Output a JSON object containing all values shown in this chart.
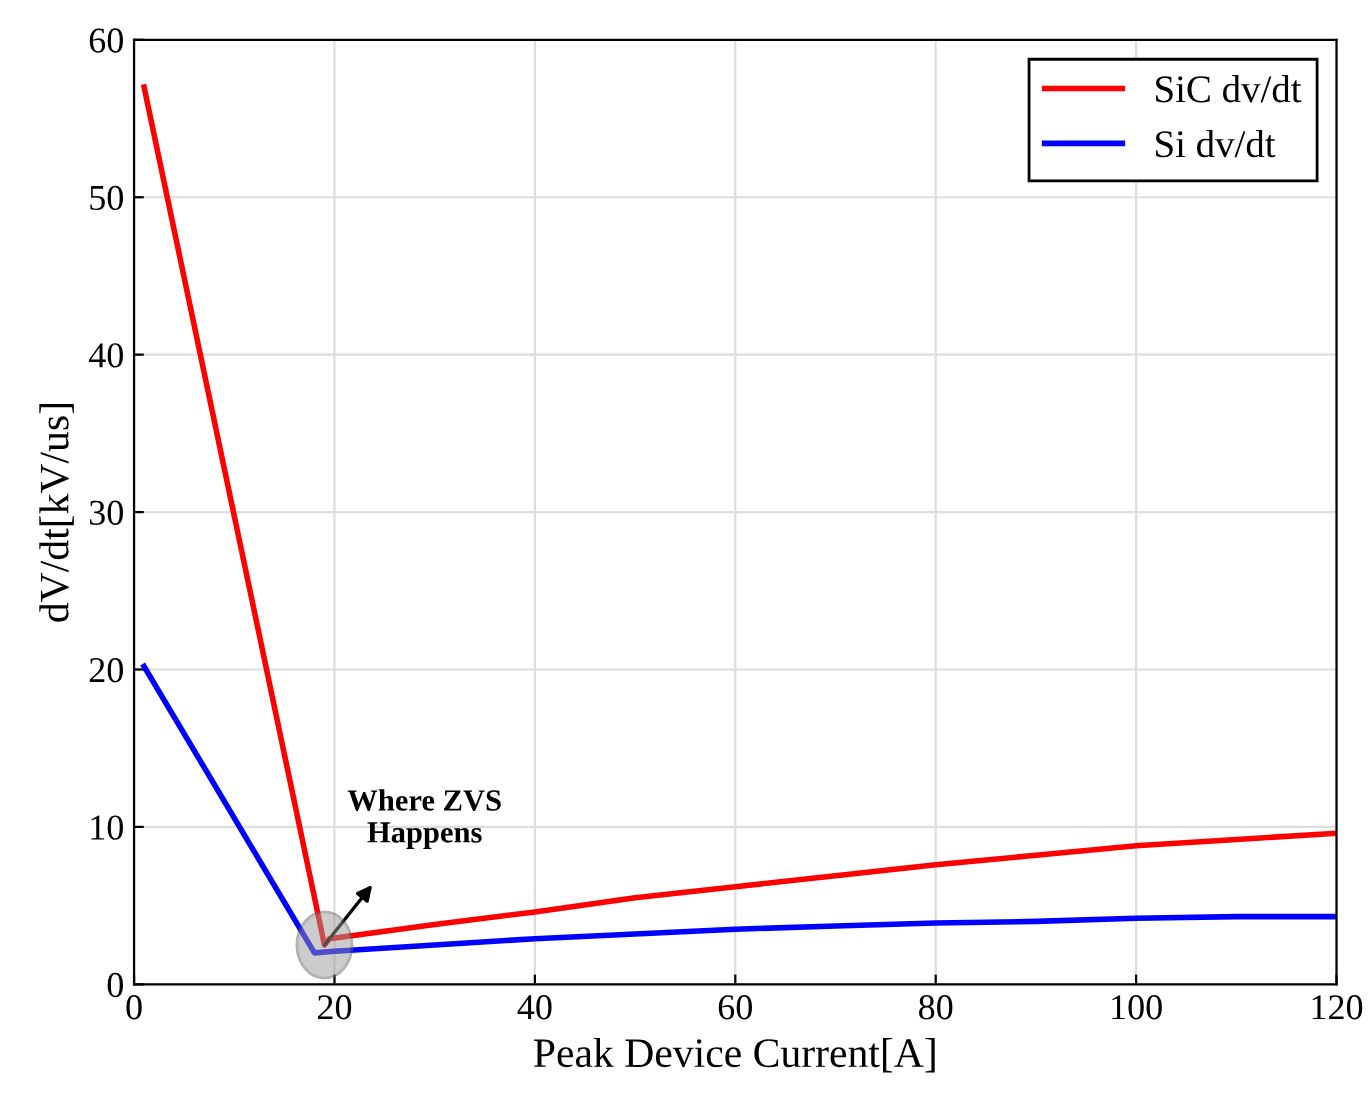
{
  "chart_data": {
    "type": "line",
    "xlabel": "Peak Device Current[A]",
    "ylabel": "dV/dt[kV/us]",
    "series": [
      {
        "name": "SiC dv/dt",
        "color": "#ff0000",
        "x": [
          1,
          19,
          19.5,
          30,
          40,
          50,
          60,
          70,
          80,
          90,
          100,
          110,
          120
        ],
        "values": [
          57,
          2.5,
          2.9,
          3.8,
          4.6,
          5.5,
          6.2,
          6.9,
          7.6,
          8.2,
          8.8,
          9.2,
          9.6
        ]
      },
      {
        "name": "Si dv/dt",
        "color": "#0000ff",
        "x": [
          1,
          18,
          20,
          30,
          40,
          50,
          60,
          70,
          80,
          90,
          100,
          110,
          120
        ],
        "values": [
          20.2,
          2.0,
          2.1,
          2.5,
          2.9,
          3.2,
          3.5,
          3.7,
          3.9,
          4.0,
          4.2,
          4.3,
          4.3
        ]
      }
    ],
    "annotations": [
      {
        "text": "Where ZVS\nHappens",
        "x": 19,
        "y": 2.5
      }
    ],
    "xlim": [
      0,
      120
    ],
    "ylim": [
      0,
      60
    ],
    "xticks": [
      0,
      20,
      40,
      60,
      80,
      100,
      120
    ],
    "yticks": [
      0,
      10,
      20,
      30,
      40,
      50,
      60
    ],
    "grid": true,
    "legend": "top right",
    "line_style": "solid",
    "marker": "none"
  }
}
